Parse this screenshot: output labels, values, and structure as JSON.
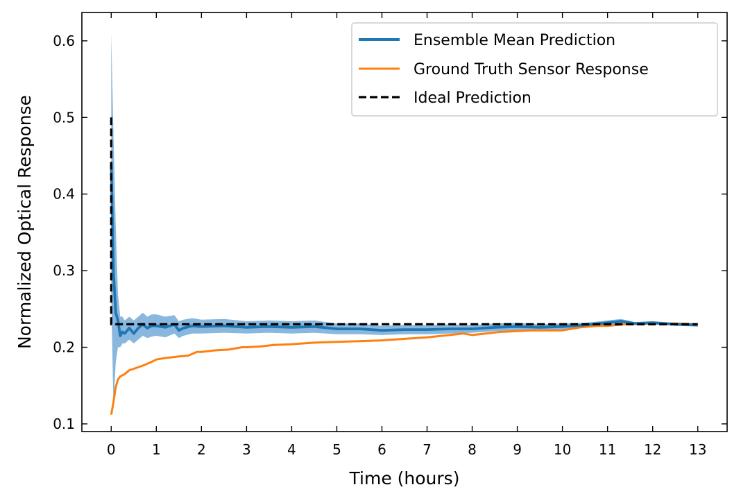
{
  "chart_data": {
    "type": "line",
    "title": "",
    "xlabel": "Time (hours)",
    "ylabel": "Normalized Optical Response",
    "xlim": [
      -0.65,
      13.65
    ],
    "ylim": [
      0.09,
      0.637
    ],
    "xticks": [
      0,
      1,
      2,
      3,
      4,
      5,
      6,
      7,
      8,
      9,
      10,
      11,
      12,
      13
    ],
    "yticks": [
      0.1,
      0.2,
      0.3,
      0.4,
      0.5,
      0.6
    ],
    "xtick_labels": [
      "0",
      "1",
      "2",
      "3",
      "4",
      "5",
      "6",
      "7",
      "8",
      "9",
      "10",
      "11",
      "12",
      "13"
    ],
    "ytick_labels": [
      "0.1",
      "0.2",
      "0.3",
      "0.4",
      "0.5",
      "0.6"
    ],
    "grid": false,
    "legend_position": "top-right",
    "series": [
      {
        "name": "Ensemble Mean Prediction",
        "color": "#1f77b4",
        "band_color": "#8ab7dd",
        "style": "solid",
        "x": [
          0,
          0.05,
          0.1,
          0.15,
          0.2,
          0.25,
          0.3,
          0.4,
          0.5,
          0.6,
          0.7,
          0.8,
          0.9,
          1.0,
          1.2,
          1.4,
          1.5,
          1.6,
          1.8,
          2.0,
          2.5,
          3.0,
          3.5,
          4.0,
          4.5,
          5.0,
          5.5,
          6.0,
          6.5,
          7.0,
          7.5,
          8.0,
          8.5,
          9.0,
          9.5,
          10.0,
          10.5,
          11.0,
          11.3,
          11.6,
          12.0,
          12.5,
          13.0
        ],
        "values": [
          0.44,
          0.3,
          0.245,
          0.235,
          0.215,
          0.22,
          0.218,
          0.225,
          0.218,
          0.225,
          0.23,
          0.225,
          0.228,
          0.228,
          0.226,
          0.23,
          0.222,
          0.225,
          0.228,
          0.227,
          0.228,
          0.226,
          0.227,
          0.226,
          0.227,
          0.224,
          0.224,
          0.222,
          0.223,
          0.223,
          0.224,
          0.224,
          0.226,
          0.227,
          0.226,
          0.227,
          0.229,
          0.232,
          0.234,
          0.231,
          0.232,
          0.23,
          0.229
        ],
        "lower": [
          0.27,
          0.12,
          0.18,
          0.2,
          0.2,
          0.205,
          0.205,
          0.21,
          0.205,
          0.21,
          0.215,
          0.212,
          0.214,
          0.215,
          0.213,
          0.218,
          0.212,
          0.215,
          0.218,
          0.218,
          0.219,
          0.218,
          0.219,
          0.218,
          0.219,
          0.217,
          0.217,
          0.216,
          0.217,
          0.217,
          0.218,
          0.219,
          0.221,
          0.222,
          0.222,
          0.223,
          0.226,
          0.229,
          0.231,
          0.229,
          0.23,
          0.228,
          0.227
        ],
        "upper": [
          0.61,
          0.48,
          0.36,
          0.27,
          0.24,
          0.24,
          0.235,
          0.24,
          0.235,
          0.24,
          0.245,
          0.24,
          0.243,
          0.243,
          0.24,
          0.242,
          0.234,
          0.236,
          0.238,
          0.236,
          0.237,
          0.234,
          0.235,
          0.234,
          0.235,
          0.231,
          0.231,
          0.228,
          0.229,
          0.229,
          0.23,
          0.229,
          0.231,
          0.232,
          0.23,
          0.231,
          0.232,
          0.235,
          0.237,
          0.233,
          0.234,
          0.232,
          0.231
        ]
      },
      {
        "name": "Ground Truth Sensor Response",
        "color": "#ff7f0e",
        "style": "solid",
        "x": [
          0,
          0.05,
          0.1,
          0.15,
          0.2,
          0.3,
          0.4,
          0.5,
          0.7,
          0.9,
          1.0,
          1.2,
          1.5,
          1.7,
          1.9,
          2.0,
          2.3,
          2.6,
          2.9,
          3.0,
          3.3,
          3.6,
          4.0,
          4.5,
          5.0,
          5.5,
          6.0,
          6.5,
          7.0,
          7.5,
          7.8,
          8.0,
          8.3,
          8.6,
          9.0,
          9.3,
          9.6,
          10.0,
          10.4,
          10.8,
          11.0,
          11.4,
          12.0,
          12.5,
          13.0
        ],
        "values": [
          0.112,
          0.128,
          0.148,
          0.158,
          0.162,
          0.165,
          0.17,
          0.172,
          0.176,
          0.181,
          0.184,
          0.186,
          0.188,
          0.189,
          0.194,
          0.194,
          0.196,
          0.197,
          0.2,
          0.2,
          0.201,
          0.203,
          0.204,
          0.206,
          0.207,
          0.208,
          0.209,
          0.211,
          0.213,
          0.216,
          0.218,
          0.216,
          0.218,
          0.22,
          0.221,
          0.222,
          0.222,
          0.222,
          0.226,
          0.228,
          0.228,
          0.23,
          0.231,
          0.231,
          0.23
        ]
      },
      {
        "name": "Ideal Prediction",
        "color": "#000000",
        "style": "dashed",
        "x": [
          0,
          0,
          13
        ],
        "values": [
          0.5,
          0.23,
          0.23
        ]
      }
    ]
  }
}
